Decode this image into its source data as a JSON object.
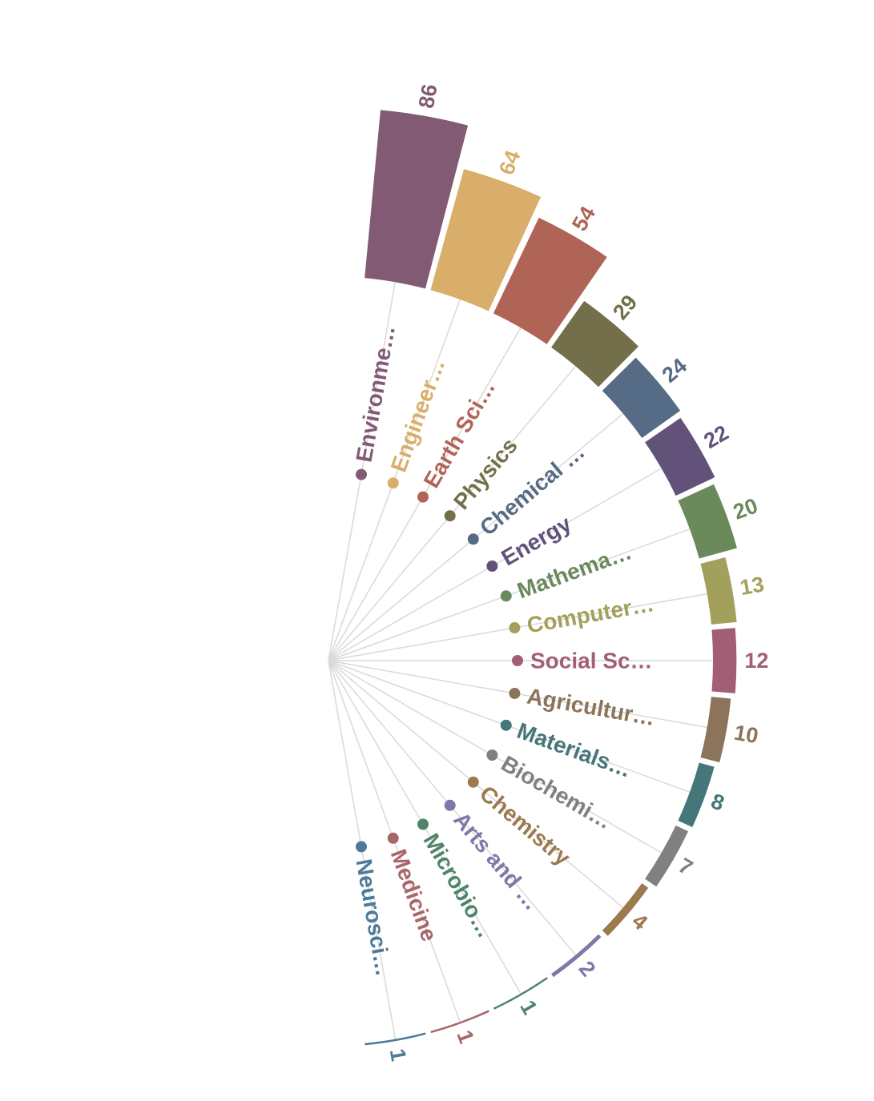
{
  "chart_data": {
    "type": "bar",
    "layout": "radial",
    "title": "",
    "xlabel": "",
    "ylabel": "",
    "grid": true,
    "categories": [
      "Environme…",
      "Engineer…",
      "Earth Sci…",
      "Physics",
      "Chemical …",
      "Energy",
      "Mathema…",
      "Computer…",
      "Social Sc…",
      "Agricultur…",
      "Materials…",
      "Biochemi…",
      "Chemistry",
      "Arts and …",
      "Microbio…",
      "Medicine",
      "Neurosci…"
    ],
    "values": [
      86,
      64,
      54,
      29,
      24,
      22,
      20,
      13,
      12,
      10,
      8,
      7,
      4,
      2,
      1,
      1,
      1
    ],
    "value_labels": [
      "86",
      "64",
      "54",
      "29",
      "24",
      "22",
      "20",
      "13",
      "12",
      "10",
      "8",
      "7",
      "4",
      "2",
      "1",
      "1",
      "1"
    ],
    "colors": [
      "#835a74",
      "#d9ae6a",
      "#b06456",
      "#736f4a",
      "#566b86",
      "#62527a",
      "#6a8a5c",
      "#a3a05e",
      "#a25e74",
      "#8b7459",
      "#457679",
      "#808080",
      "#9a7a4e",
      "#7f77a8",
      "#4e8568",
      "#a8666a",
      "#4d7b9a"
    ],
    "ylim": [
      0,
      86
    ]
  }
}
